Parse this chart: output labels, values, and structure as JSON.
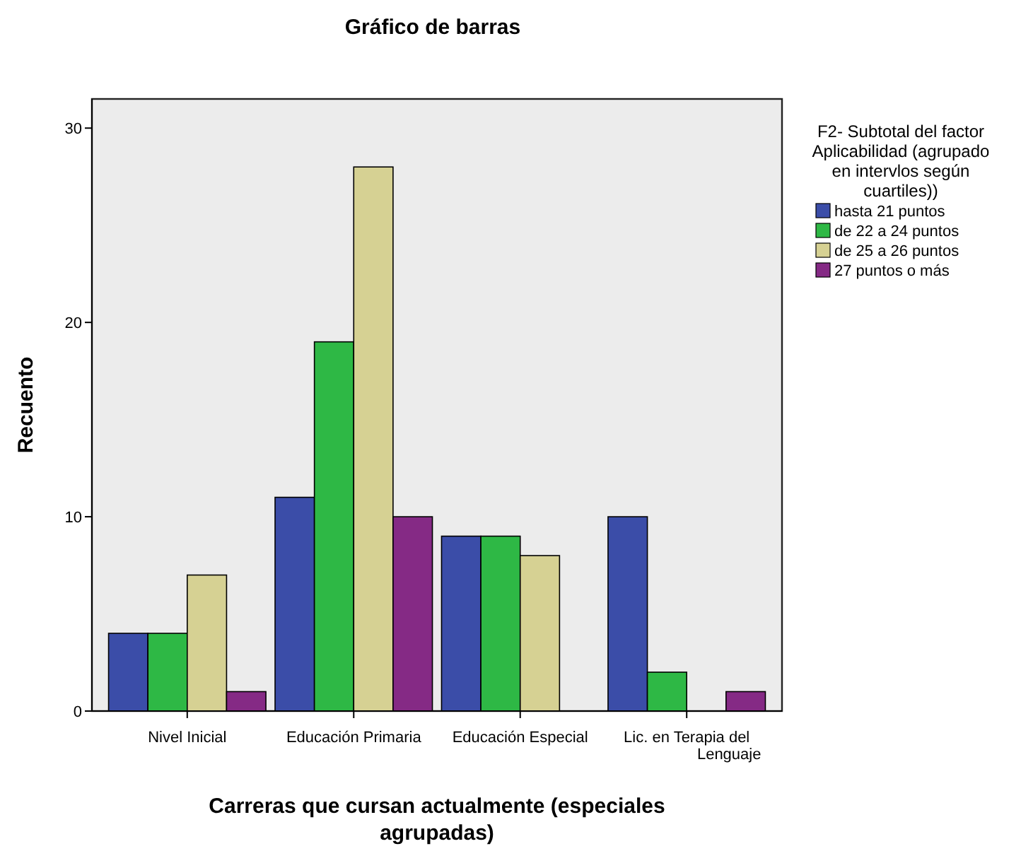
{
  "chart_data": {
    "type": "bar",
    "title": "Gráfico de barras",
    "xlabel": "Carreras que cursan actualmente (especiales agrupadas)",
    "ylabel": "Recuento",
    "legend_title": "F2- Subtotal del factor Aplicabilidad (agrupado en intervlos según cuartiles))",
    "categories": [
      "Nivel Inicial",
      "Educación Primaria",
      "Educación Especial",
      "Lic. en Terapia del Lenguaje"
    ],
    "series": [
      {
        "name": "hasta 21 puntos",
        "color": "#3b4da8",
        "values": [
          4,
          11,
          9,
          10
        ]
      },
      {
        "name": "de 22 a 24 puntos",
        "color": "#2eb845",
        "values": [
          4,
          19,
          9,
          2
        ]
      },
      {
        "name": "de 25 a 26 puntos",
        "color": "#d6d193",
        "values": [
          7,
          28,
          8,
          null
        ]
      },
      {
        "name": "27 puntos o más",
        "color": "#852a85",
        "values": [
          1,
          10,
          null,
          1
        ]
      }
    ],
    "ylim": [
      0,
      31.5
    ],
    "yticks": [
      0,
      10,
      20,
      30
    ],
    "grid": false,
    "legend": "top right"
  }
}
